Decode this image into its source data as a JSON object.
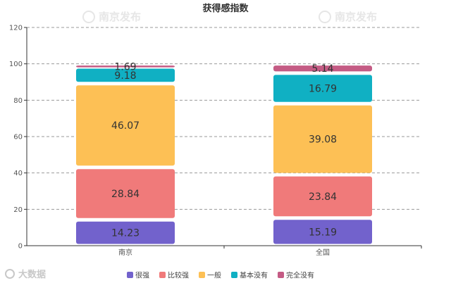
{
  "chart_data": {
    "type": "bar",
    "stacked": true,
    "title": "获得感指数",
    "xlabel": "",
    "ylabel": "",
    "categories": [
      "南京",
      "全国"
    ],
    "ylim": [
      0,
      120
    ],
    "yticks": [
      0,
      20,
      40,
      60,
      80,
      100,
      120
    ],
    "grid": true,
    "legend_position": "bottom",
    "series": [
      {
        "name": "很强",
        "color": "#7262cc",
        "values": [
          14.23,
          15.19
        ],
        "labels": [
          "14.23",
          "15.19"
        ]
      },
      {
        "name": "比较强",
        "color": "#f07a7a",
        "values": [
          28.84,
          23.84
        ],
        "labels": [
          "28.84",
          "23.84"
        ]
      },
      {
        "name": "一般",
        "color": "#fdc055",
        "values": [
          46.07,
          39.08
        ],
        "labels": [
          "46.07",
          "39.08"
        ]
      },
      {
        "name": "基本没有",
        "color": "#10b0c3",
        "values": [
          9.18,
          16.79
        ],
        "labels": [
          "9.18",
          "16.79"
        ]
      },
      {
        "name": "完全没有",
        "color": "#c45b84",
        "values": [
          1.69,
          5.14
        ],
        "labels": [
          "1.69",
          "5.14"
        ]
      }
    ]
  },
  "watermark": {
    "text": "南京发布",
    "bottom_text": "大数据"
  }
}
